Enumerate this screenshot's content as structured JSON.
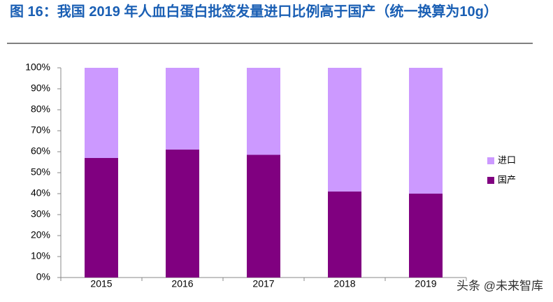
{
  "chart_data": {
    "type": "stacked_bar",
    "title": "图 16：我国 2019 年人血白蛋白批签发量进口比例高于国产（统一换算为10g）",
    "categories": [
      "2015",
      "2016",
      "2017",
      "2018",
      "2019"
    ],
    "series": [
      {
        "name": "国产",
        "color": "#800080",
        "values": [
          57,
          61,
          58.5,
          41,
          40
        ]
      },
      {
        "name": "进口",
        "color": "#cc99ff",
        "values": [
          43,
          39,
          41.5,
          59,
          60
        ]
      }
    ],
    "ylim": [
      0,
      100
    ],
    "yticks": [
      {
        "value": 0,
        "label": "0%"
      },
      {
        "value": 10,
        "label": "10%"
      },
      {
        "value": 20,
        "label": "20%"
      },
      {
        "value": 30,
        "label": "30%"
      },
      {
        "value": 40,
        "label": "40%"
      },
      {
        "value": 50,
        "label": "50%"
      },
      {
        "value": 60,
        "label": "60%"
      },
      {
        "value": 70,
        "label": "70%"
      },
      {
        "value": 80,
        "label": "80%"
      },
      {
        "value": 90,
        "label": "90%"
      },
      {
        "value": 100,
        "label": "100%"
      }
    ],
    "grid": false,
    "legend": "right",
    "watermark": "头条 @未来智库"
  }
}
